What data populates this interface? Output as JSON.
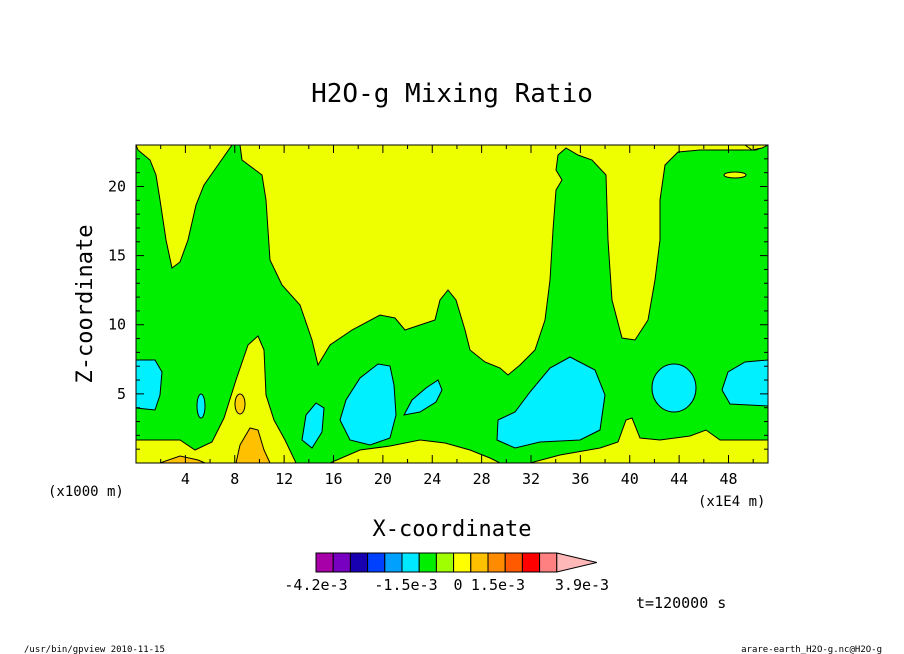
{
  "chart_data": {
    "type": "contour",
    "title": "H2O-g Mixing Ratio",
    "xlabel": "X-coordinate",
    "ylabel": "Z-coordinate",
    "x_unit_left": "(x1000 m)",
    "x_unit_right": "(x1E4 m)",
    "xlim": [
      0,
      51.2
    ],
    "ylim": [
      0,
      23
    ],
    "x_ticks": [
      4,
      8,
      12,
      16,
      20,
      24,
      28,
      32,
      36,
      40,
      44,
      48
    ],
    "y_ticks": [
      5,
      10,
      15,
      20
    ],
    "colorbar": {
      "colors": [
        "#a800a8",
        "#7800c0",
        "#1800b0",
        "#0040ff",
        "#00a0ff",
        "#00e8ff",
        "#00ee00",
        "#a0ff00",
        "#ffff00",
        "#ffc000",
        "#ff8c00",
        "#ff5a00",
        "#ff0000",
        "#ff8080",
        "#ffb8b8"
      ],
      "labels": [
        "-4.2e-3",
        "-1.5e-3",
        "0",
        "1.5e-3",
        "3.9e-3"
      ]
    },
    "regions": [
      {
        "name": "upper-yellow",
        "level": "yellow"
      },
      {
        "name": "low-level-green-band",
        "level": "green"
      },
      {
        "name": "cyan-pockets",
        "level": "cyan"
      },
      {
        "name": "surface-yellow",
        "level": "yellow"
      },
      {
        "name": "surface-orange",
        "level": "orange"
      }
    ]
  },
  "time_label": "t=120000 s",
  "footer": {
    "left": "/usr/bin/gpview  2010-11-15",
    "right": "arare-earth_H2O-g.nc@H2O-g"
  },
  "colors": {
    "green": "#00ee00",
    "yellow": "#eeff00",
    "cyan": "#00f0ff",
    "orange": "#ffc000",
    "light_orange": "#ffd000"
  }
}
